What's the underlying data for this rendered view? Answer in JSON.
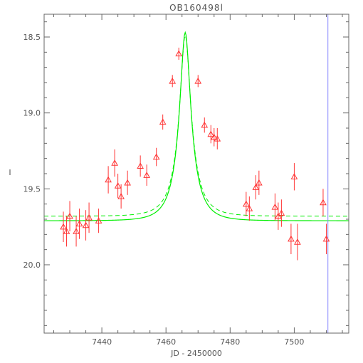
{
  "chart_data": {
    "type": "scatter",
    "title": "OB160498l",
    "xlabel": "JD - 2450000",
    "ylabel": "I",
    "xlim": [
      7422,
      7517
    ],
    "ylim": [
      20.45,
      18.35
    ],
    "y_inverted": true,
    "grid": false,
    "x_ticks": [
      7440,
      7460,
      7480,
      7500
    ],
    "x_tick_labels": [
      "7440",
      "7460",
      "7480",
      "7500"
    ],
    "y_ticks": [
      18.5,
      19.0,
      19.5,
      20.0
    ],
    "y_tick_labels": [
      "18.5",
      "19.0",
      "19.5",
      "20.0"
    ],
    "colors": {
      "points": "#ff3333",
      "model_solid": "#00ee00",
      "model_dashed": "#00ee00",
      "marker_line": "#8888ff",
      "axes": "#666666"
    },
    "observations": [
      {
        "x": 7428,
        "y": 19.75,
        "err": 0.1
      },
      {
        "x": 7429,
        "y": 19.78,
        "err": 0.1
      },
      {
        "x": 7430,
        "y": 19.68,
        "err": 0.1
      },
      {
        "x": 7432,
        "y": 19.78,
        "err": 0.1
      },
      {
        "x": 7433,
        "y": 19.73,
        "err": 0.1
      },
      {
        "x": 7435,
        "y": 19.74,
        "err": 0.1
      },
      {
        "x": 7436,
        "y": 19.69,
        "err": 0.1
      },
      {
        "x": 7439,
        "y": 19.71,
        "err": 0.08
      },
      {
        "x": 7442,
        "y": 19.44,
        "err": 0.09
      },
      {
        "x": 7444,
        "y": 19.33,
        "err": 0.09
      },
      {
        "x": 7445,
        "y": 19.48,
        "err": 0.08
      },
      {
        "x": 7446,
        "y": 19.55,
        "err": 0.08
      },
      {
        "x": 7448,
        "y": 19.46,
        "err": 0.08
      },
      {
        "x": 7452,
        "y": 19.35,
        "err": 0.07
      },
      {
        "x": 7454,
        "y": 19.41,
        "err": 0.07
      },
      {
        "x": 7457,
        "y": 19.29,
        "err": 0.06
      },
      {
        "x": 7459,
        "y": 19.06,
        "err": 0.05
      },
      {
        "x": 7462,
        "y": 18.79,
        "err": 0.04
      },
      {
        "x": 7464,
        "y": 18.61,
        "err": 0.04
      },
      {
        "x": 7470,
        "y": 18.79,
        "err": 0.04
      },
      {
        "x": 7472,
        "y": 19.08,
        "err": 0.05
      },
      {
        "x": 7474,
        "y": 19.14,
        "err": 0.06
      },
      {
        "x": 7475,
        "y": 19.16,
        "err": 0.06
      },
      {
        "x": 7476,
        "y": 19.17,
        "err": 0.07
      },
      {
        "x": 7485,
        "y": 19.6,
        "err": 0.08
      },
      {
        "x": 7486,
        "y": 19.63,
        "err": 0.08
      },
      {
        "x": 7488,
        "y": 19.49,
        "err": 0.08
      },
      {
        "x": 7489,
        "y": 19.46,
        "err": 0.08
      },
      {
        "x": 7494,
        "y": 19.62,
        "err": 0.09
      },
      {
        "x": 7495,
        "y": 19.68,
        "err": 0.09
      },
      {
        "x": 7496,
        "y": 19.66,
        "err": 0.09
      },
      {
        "x": 7499,
        "y": 19.83,
        "err": 0.1
      },
      {
        "x": 7500,
        "y": 19.42,
        "err": 0.09
      },
      {
        "x": 7501,
        "y": 19.85,
        "err": 0.12
      },
      {
        "x": 7509,
        "y": 19.59,
        "err": 0.09
      },
      {
        "x": 7510,
        "y": 19.83,
        "err": 0.1
      }
    ],
    "model": {
      "t0": 7466,
      "tE": 6.0,
      "u0": 0.28,
      "baseline": 19.71,
      "peak": 18.47
    },
    "model_dashed": {
      "t0": 7466,
      "tE": 6.0,
      "u0": 0.285,
      "baseline": 19.68,
      "peak": 18.49
    },
    "vertical_marker_x": 7510.5
  }
}
